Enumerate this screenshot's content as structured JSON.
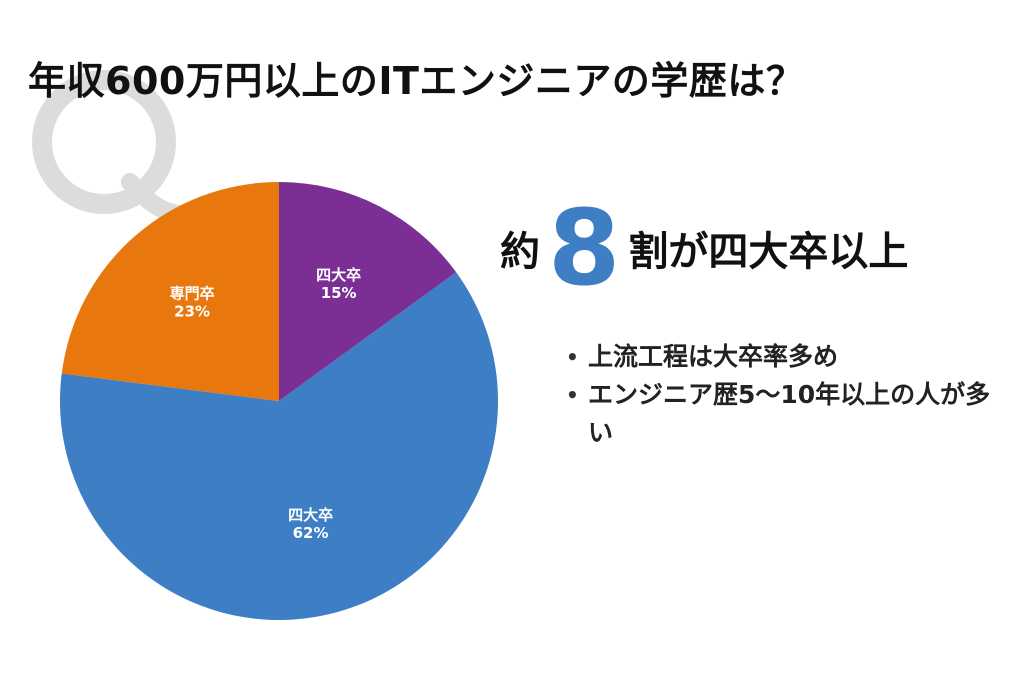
{
  "title": "年収600万円以上のITエンジニアの学歴は？",
  "headline": {
    "prefix": "約",
    "number": "8",
    "suffix": "割が四大卒以上",
    "number_color": "#3d7ec4"
  },
  "bullets": [
    "上流工程は大卒率多め",
    "エンジニア歴5〜10年以上の人が多い"
  ],
  "chart_data": {
    "type": "pie",
    "title": "",
    "slices": [
      {
        "label": "四大卒",
        "value": 15,
        "value_label": "15%",
        "color": "#7b2f94"
      },
      {
        "label": "四大卒",
        "value": 62,
        "value_label": "62%",
        "color": "#3d7ec4"
      },
      {
        "label": "専門卒",
        "value": 23,
        "value_label": "23%",
        "color": "#e8780e"
      }
    ],
    "start": "12 o'clock",
    "direction": "clockwise",
    "legend": "none"
  },
  "decoration": {
    "watermark_letter": "Q",
    "watermark_color": "#d9d9d9"
  }
}
